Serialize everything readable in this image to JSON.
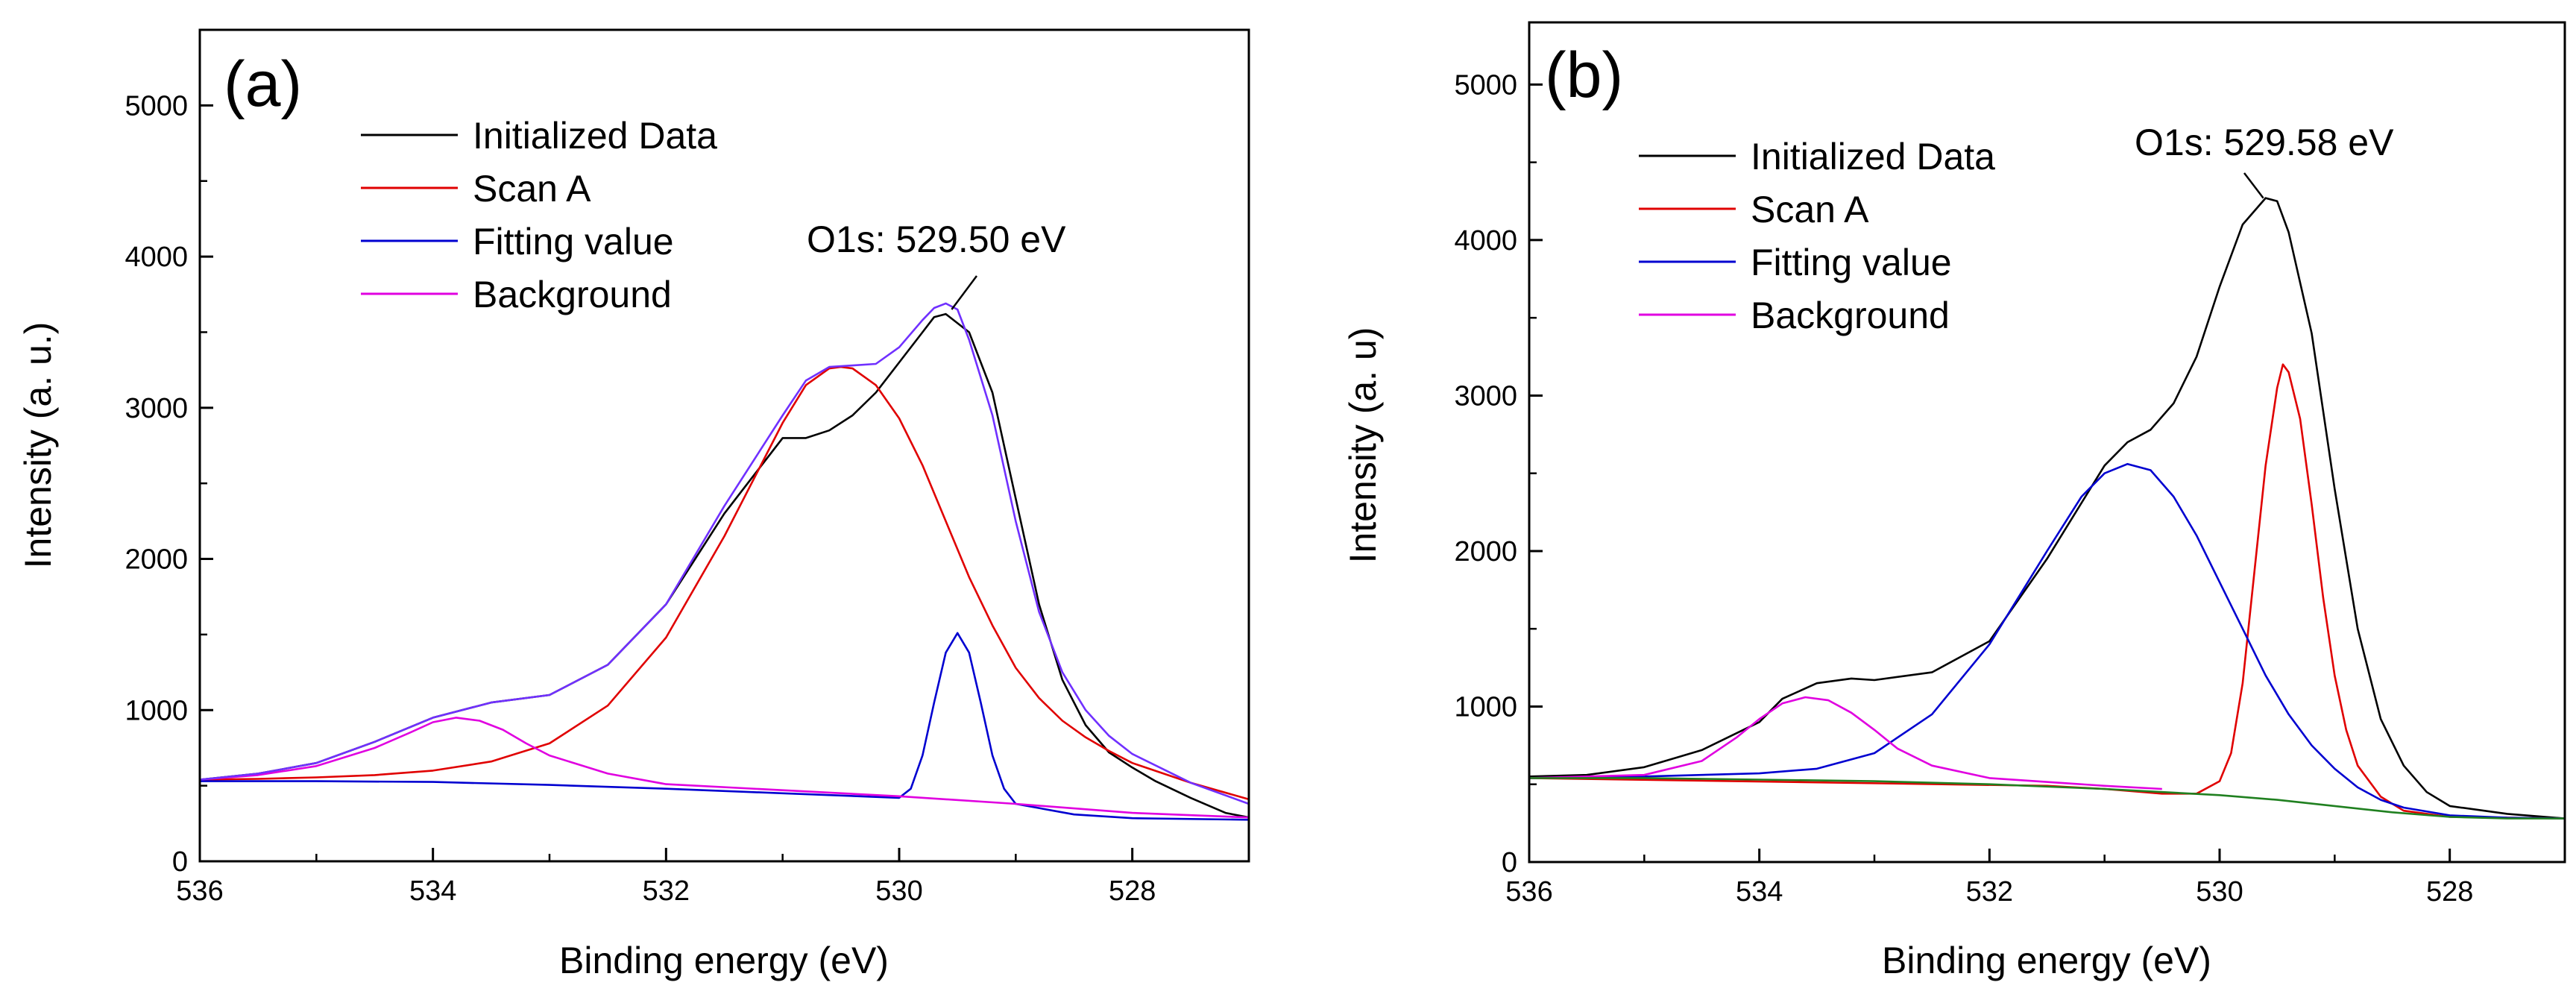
{
  "chart_data": [
    {
      "type": "line",
      "panel_label": "(a)",
      "xlabel": "Binding energy (eV)",
      "ylabel": "Intensity (a. u.)",
      "xlim": [
        536,
        527
      ],
      "ylim": [
        0,
        5500
      ],
      "xticks": [
        536,
        534,
        532,
        530,
        528
      ],
      "yticks": [
        0,
        1000,
        2000,
        3000,
        4000,
        5000
      ],
      "grid": false,
      "legend": {
        "position": "top-left",
        "entries": [
          {
            "label": "Initialized Data",
            "color": "#000000"
          },
          {
            "label": "Scan A",
            "color": "#e00000"
          },
          {
            "label": "Fitting value",
            "color": "#0000d0"
          },
          {
            "label": "Background",
            "color": "#e000e0"
          }
        ]
      },
      "annotation": {
        "text": "O1s: 529.50 eV",
        "x": 529.55,
        "y": 3650
      },
      "series": [
        {
          "name": "Initialized Data",
          "color": "#000000",
          "points": [
            [
              536,
              540
            ],
            [
              535.5,
              580
            ],
            [
              535,
              650
            ],
            [
              534.5,
              790
            ],
            [
              534,
              950
            ],
            [
              533.5,
              1050
            ],
            [
              533,
              1100
            ],
            [
              532.5,
              1300
            ],
            [
              532,
              1700
            ],
            [
              531.5,
              2300
            ],
            [
              531.2,
              2600
            ],
            [
              531,
              2800
            ],
            [
              530.8,
              2800
            ],
            [
              530.6,
              2850
            ],
            [
              530.4,
              2950
            ],
            [
              530.2,
              3100
            ],
            [
              530,
              3300
            ],
            [
              529.8,
              3500
            ],
            [
              529.7,
              3600
            ],
            [
              529.6,
              3620
            ],
            [
              529.4,
              3500
            ],
            [
              529.2,
              3100
            ],
            [
              529,
              2400
            ],
            [
              528.8,
              1700
            ],
            [
              528.6,
              1200
            ],
            [
              528.4,
              900
            ],
            [
              528.2,
              720
            ],
            [
              528,
              620
            ],
            [
              527.8,
              530
            ],
            [
              527.5,
              420
            ],
            [
              527.2,
              320
            ],
            [
              527,
              290
            ]
          ]
        },
        {
          "name": "Scan A",
          "color": "#e00000",
          "points": [
            [
              536,
              540
            ],
            [
              535.5,
              545
            ],
            [
              535,
              555
            ],
            [
              534.5,
              570
            ],
            [
              534,
              600
            ],
            [
              533.5,
              660
            ],
            [
              533,
              780
            ],
            [
              532.5,
              1030
            ],
            [
              532,
              1480
            ],
            [
              531.5,
              2150
            ],
            [
              531,
              2900
            ],
            [
              530.8,
              3150
            ],
            [
              530.6,
              3260
            ],
            [
              530.5,
              3270
            ],
            [
              530.4,
              3260
            ],
            [
              530.2,
              3150
            ],
            [
              530,
              2930
            ],
            [
              529.8,
              2620
            ],
            [
              529.6,
              2250
            ],
            [
              529.4,
              1880
            ],
            [
              529.2,
              1560
            ],
            [
              529,
              1280
            ],
            [
              528.8,
              1080
            ],
            [
              528.6,
              930
            ],
            [
              528.4,
              820
            ],
            [
              528.2,
              730
            ],
            [
              528,
              650
            ],
            [
              527.5,
              520
            ],
            [
              527,
              410
            ]
          ]
        },
        {
          "name": "Fitting value",
          "color": "#0000d0",
          "points": [
            [
              536,
              530
            ],
            [
              535,
              530
            ],
            [
              534,
              525
            ],
            [
              533,
              505
            ],
            [
              532,
              480
            ],
            [
              531,
              450
            ],
            [
              530.5,
              435
            ],
            [
              530,
              420
            ],
            [
              529.9,
              480
            ],
            [
              529.8,
              700
            ],
            [
              529.7,
              1050
            ],
            [
              529.6,
              1380
            ],
            [
              529.5,
              1510
            ],
            [
              529.4,
              1380
            ],
            [
              529.3,
              1050
            ],
            [
              529.2,
              700
            ],
            [
              529.1,
              480
            ],
            [
              529,
              380
            ],
            [
              528.5,
              310
            ],
            [
              528,
              285
            ],
            [
              527,
              275
            ]
          ]
        },
        {
          "name": "Background",
          "color": "#e000e0",
          "points": [
            [
              536,
              540
            ],
            [
              535.5,
              570
            ],
            [
              535,
              630
            ],
            [
              534.5,
              750
            ],
            [
              534.2,
              850
            ],
            [
              534,
              920
            ],
            [
              533.8,
              950
            ],
            [
              533.6,
              930
            ],
            [
              533.4,
              870
            ],
            [
              533.2,
              780
            ],
            [
              533,
              700
            ],
            [
              532.5,
              580
            ],
            [
              532,
              510
            ],
            [
              531,
              470
            ],
            [
              530,
              430
            ],
            [
              529,
              380
            ],
            [
              528,
              320
            ],
            [
              527,
              290
            ]
          ]
        },
        {
          "name": "Envelope",
          "color": "#7030ff",
          "points": [
            [
              536,
              540
            ],
            [
              535.5,
              580
            ],
            [
              535,
              650
            ],
            [
              534.5,
              790
            ],
            [
              534,
              950
            ],
            [
              533.5,
              1050
            ],
            [
              533,
              1100
            ],
            [
              532.5,
              1300
            ],
            [
              532,
              1700
            ],
            [
              531.5,
              2350
            ],
            [
              531,
              2950
            ],
            [
              530.8,
              3180
            ],
            [
              530.6,
              3270
            ],
            [
              530.4,
              3280
            ],
            [
              530.2,
              3290
            ],
            [
              530,
              3400
            ],
            [
              529.8,
              3580
            ],
            [
              529.7,
              3660
            ],
            [
              529.6,
              3690
            ],
            [
              529.5,
              3650
            ],
            [
              529.4,
              3450
            ],
            [
              529.2,
              2950
            ],
            [
              529,
              2250
            ],
            [
              528.8,
              1650
            ],
            [
              528.6,
              1250
            ],
            [
              528.4,
              1000
            ],
            [
              528.2,
              830
            ],
            [
              528,
              710
            ],
            [
              527.5,
              520
            ],
            [
              527,
              380
            ]
          ]
        }
      ]
    },
    {
      "type": "line",
      "panel_label": "(b)",
      "xlabel": "Binding energy (eV)",
      "ylabel": "Intensity (a. u)",
      "xlim": [
        536,
        527
      ],
      "ylim": [
        0,
        5400
      ],
      "xticks": [
        536,
        534,
        532,
        530,
        528
      ],
      "yticks": [
        0,
        1000,
        2000,
        3000,
        4000,
        5000
      ],
      "grid": false,
      "legend": {
        "position": "top-left",
        "entries": [
          {
            "label": "Initialized Data",
            "color": "#000000"
          },
          {
            "label": "Scan A",
            "color": "#e00000"
          },
          {
            "label": "Fitting value",
            "color": "#0000d0"
          },
          {
            "label": "Background",
            "color": "#e000e0"
          }
        ]
      },
      "annotation": {
        "text": "O1s: 529.58 eV",
        "x": 529.62,
        "y": 4270
      },
      "series": [
        {
          "name": "Initialized Data",
          "color": "#000000",
          "points": [
            [
              536,
              550
            ],
            [
              535.5,
              560
            ],
            [
              535,
              610
            ],
            [
              534.5,
              720
            ],
            [
              534,
              900
            ],
            [
              533.8,
              1050
            ],
            [
              533.5,
              1150
            ],
            [
              533.2,
              1180
            ],
            [
              533,
              1170
            ],
            [
              532.5,
              1220
            ],
            [
              532,
              1420
            ],
            [
              531.5,
              1950
            ],
            [
              531,
              2550
            ],
            [
              530.8,
              2700
            ],
            [
              530.6,
              2780
            ],
            [
              530.4,
              2950
            ],
            [
              530.2,
              3250
            ],
            [
              530,
              3700
            ],
            [
              529.8,
              4100
            ],
            [
              529.6,
              4270
            ],
            [
              529.5,
              4250
            ],
            [
              529.4,
              4050
            ],
            [
              529.2,
              3400
            ],
            [
              529,
              2400
            ],
            [
              528.8,
              1500
            ],
            [
              528.6,
              920
            ],
            [
              528.4,
              620
            ],
            [
              528.2,
              450
            ],
            [
              528,
              360
            ],
            [
              527.5,
              310
            ],
            [
              527,
              280
            ]
          ]
        },
        {
          "name": "Scan A",
          "color": "#e00000",
          "points": [
            [
              536,
              540
            ],
            [
              531.5,
              490
            ],
            [
              531,
              470
            ],
            [
              530.5,
              440
            ],
            [
              530.2,
              440
            ],
            [
              530,
              520
            ],
            [
              529.9,
              700
            ],
            [
              529.8,
              1150
            ],
            [
              529.7,
              1850
            ],
            [
              529.6,
              2550
            ],
            [
              529.5,
              3050
            ],
            [
              529.45,
              3200
            ],
            [
              529.4,
              3150
            ],
            [
              529.3,
              2850
            ],
            [
              529.2,
              2300
            ],
            [
              529.1,
              1700
            ],
            [
              529,
              1200
            ],
            [
              528.9,
              850
            ],
            [
              528.8,
              620
            ],
            [
              528.6,
              420
            ],
            [
              528.4,
              330
            ],
            [
              528,
              290
            ],
            [
              527,
              280
            ]
          ]
        },
        {
          "name": "Fitting value",
          "color": "#0000d0",
          "points": [
            [
              536,
              540
            ],
            [
              535,
              550
            ],
            [
              534.5,
              560
            ],
            [
              534,
              570
            ],
            [
              533.5,
              600
            ],
            [
              533,
              700
            ],
            [
              532.5,
              950
            ],
            [
              532,
              1400
            ],
            [
              531.5,
              2000
            ],
            [
              531.2,
              2350
            ],
            [
              531,
              2500
            ],
            [
              530.8,
              2560
            ],
            [
              530.6,
              2520
            ],
            [
              530.4,
              2350
            ],
            [
              530.2,
              2100
            ],
            [
              530,
              1800
            ],
            [
              529.8,
              1500
            ],
            [
              529.6,
              1200
            ],
            [
              529.4,
              950
            ],
            [
              529.2,
              750
            ],
            [
              529,
              600
            ],
            [
              528.8,
              480
            ],
            [
              528.6,
              400
            ],
            [
              528.4,
              350
            ],
            [
              528,
              300
            ],
            [
              527.5,
              285
            ],
            [
              527,
              280
            ]
          ]
        },
        {
          "name": "Background",
          "color": "#e000e0",
          "points": [
            [
              536,
              540
            ],
            [
              535,
              560
            ],
            [
              534.5,
              650
            ],
            [
              534.2,
              800
            ],
            [
              534,
              920
            ],
            [
              533.8,
              1020
            ],
            [
              533.6,
              1060
            ],
            [
              533.4,
              1040
            ],
            [
              533.2,
              960
            ],
            [
              533,
              850
            ],
            [
              532.8,
              730
            ],
            [
              532.5,
              620
            ],
            [
              532,
              540
            ],
            [
              531,
              490
            ],
            [
              530.5,
              470
            ]
          ]
        },
        {
          "name": "Baseline",
          "color": "#208020",
          "points": [
            [
              536,
              540
            ],
            [
              535,
              540
            ],
            [
              534,
              530
            ],
            [
              533,
              520
            ],
            [
              532,
              500
            ],
            [
              531,
              470
            ],
            [
              530,
              430
            ],
            [
              529.5,
              400
            ],
            [
              529,
              360
            ],
            [
              528.5,
              320
            ],
            [
              528,
              290
            ],
            [
              527.5,
              280
            ],
            [
              527,
              280
            ]
          ]
        }
      ]
    }
  ]
}
